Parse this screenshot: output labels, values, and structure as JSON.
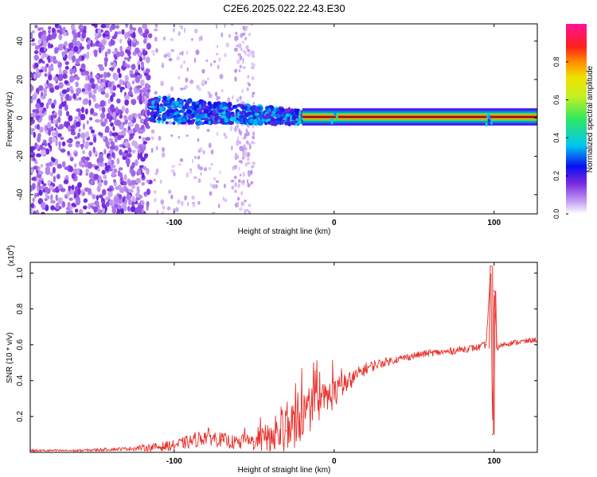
{
  "title": "C2E6.2025.022.22.43.E30",
  "chart_data": [
    {
      "type": "heatmap",
      "xlabel": "Height of straight line (km)",
      "ylabel": "Frequency (Hz)",
      "xlim": [
        -190,
        127
      ],
      "ylim": [
        -50,
        49
      ],
      "xticks": [
        -100,
        0,
        100
      ],
      "xtick_labels": [
        "-100",
        "0",
        "100"
      ],
      "yticks": [
        40,
        20,
        0,
        -20,
        -40
      ],
      "ytick_labels": [
        "40",
        "20",
        "0",
        "-20",
        "-40"
      ],
      "colorbar": {
        "label": "Normalized spectral amplitude",
        "range": [
          0,
          1
        ],
        "ticks": [
          0.0,
          0.2,
          0.4,
          0.6,
          0.8
        ],
        "tick_labels": [
          "0.0",
          "0.2",
          "0.4",
          "0.6",
          "0.8"
        ]
      },
      "features": [
        {
          "name": "noise",
          "x_range": [
            -190,
            -115
          ],
          "freq_range": [
            -50,
            49
          ],
          "amplitude": 0.12
        },
        {
          "name": "sparse noise",
          "x_range": [
            -115,
            -50
          ],
          "freq_range": [
            -50,
            49
          ],
          "amplitude": 0.05
        },
        {
          "name": "signal onset",
          "x_range": [
            -115,
            -20
          ],
          "freq_center": 2,
          "freq_width": 14,
          "amplitude": 0.3
        },
        {
          "name": "carrier line",
          "x_range": [
            -20,
            127
          ],
          "freq_center": 0.5,
          "amplitude": 1.0
        },
        {
          "name": "disturbance",
          "x": 97,
          "freq_width": 7,
          "amplitude": 0.4
        }
      ]
    },
    {
      "type": "line",
      "xlabel": "Height of straight line (km)",
      "ylabel": "SNR (10 * v/v)",
      "scale_label": "(x10",
      "scale_exp": "4",
      "scale_close": ")",
      "xlim": [
        -190,
        127
      ],
      "ylim": [
        0,
        1.06
      ],
      "xticks": [
        -100,
        0,
        100
      ],
      "xtick_labels": [
        "-100",
        "0",
        "100"
      ],
      "yticks": [
        0.2,
        0.4,
        0.6,
        0.8,
        1.0
      ],
      "ytick_labels": [
        "0.2",
        "0.4",
        "0.6",
        "0.8",
        "1.0"
      ],
      "series": [
        {
          "name": "SNR",
          "color": "#e8302a",
          "x": [
            -190,
            -160,
            -130,
            -110,
            -100,
            -90,
            -80,
            -70,
            -60,
            -50,
            -40,
            -30,
            -20,
            -10,
            0,
            10,
            20,
            30,
            40,
            50,
            60,
            70,
            80,
            90,
            95,
            98,
            99,
            100,
            102,
            105,
            110,
            120,
            127
          ],
          "values": [
            0.01,
            0.01,
            0.02,
            0.03,
            0.04,
            0.06,
            0.09,
            0.07,
            0.05,
            0.06,
            0.08,
            0.12,
            0.2,
            0.27,
            0.33,
            0.4,
            0.47,
            0.5,
            0.52,
            0.54,
            0.555,
            0.56,
            0.575,
            0.585,
            0.6,
            1.04,
            0.1,
            0.9,
            0.58,
            0.6,
            0.61,
            0.62,
            0.63
          ],
          "noise": [
            0.006,
            0.006,
            0.01,
            0.025,
            0.03,
            0.04,
            0.05,
            0.04,
            0.04,
            0.05,
            0.1,
            0.14,
            0.14,
            0.11,
            0.09,
            0.05,
            0.035,
            0.025,
            0.02,
            0.02,
            0.02,
            0.02,
            0.02,
            0.02,
            0.02,
            0.0,
            0.0,
            0.0,
            0.02,
            0.015,
            0.015,
            0.015,
            0.015
          ]
        }
      ]
    }
  ]
}
